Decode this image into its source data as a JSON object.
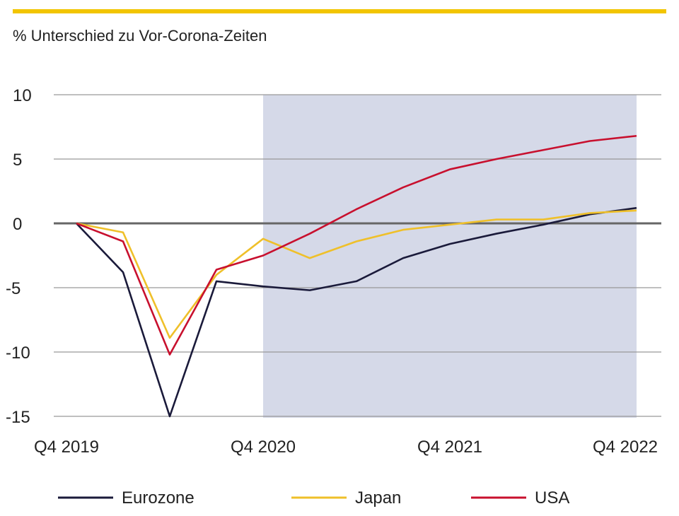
{
  "chart_data": {
    "type": "line",
    "title": "",
    "subtitle": "% Unterschied zu Vor-Corona-Zeiten",
    "xlabel": "",
    "ylabel": "",
    "x": [
      "Q4 2019",
      "Q1 2020",
      "Q2 2020",
      "Q3 2020",
      "Q4 2020",
      "Q1 2021",
      "Q2 2021",
      "Q3 2021",
      "Q4 2021",
      "Q1 2022",
      "Q2 2022",
      "Q3 2022",
      "Q4 2022"
    ],
    "x_tick_labels": [
      "Q4 2019",
      "Q4 2020",
      "Q4 2021",
      "Q4 2022"
    ],
    "y_ticks": [
      10,
      5,
      0,
      -5,
      -10,
      -15
    ],
    "ylim": [
      -15,
      10
    ],
    "grid": "horizontal",
    "shaded_range": [
      "Q4 2020",
      "Q4 2022"
    ],
    "shade_color": "#d5d9e8",
    "legend_position": "bottom",
    "series": [
      {
        "name": "Eurozone",
        "color": "#1a1a3a",
        "values": [
          0,
          -3.8,
          -15,
          -4.5,
          -4.9,
          -5.2,
          -4.5,
          -2.7,
          -1.6,
          -0.8,
          -0.1,
          0.7,
          1.2
        ]
      },
      {
        "name": "Japan",
        "color": "#efc02a",
        "values": [
          0,
          -0.7,
          -8.9,
          -4.0,
          -1.2,
          -2.7,
          -1.4,
          -0.5,
          -0.1,
          0.3,
          0.3,
          0.8,
          1.0
        ]
      },
      {
        "name": "USA",
        "color": "#c8102e",
        "values": [
          0,
          -1.4,
          -10.2,
          -3.6,
          -2.5,
          -0.8,
          1.1,
          2.8,
          4.2,
          5.0,
          5.7,
          6.4,
          6.8
        ]
      }
    ]
  },
  "accent_color": "#f2c500"
}
